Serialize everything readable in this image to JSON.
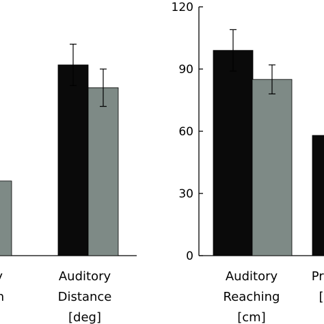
{
  "chart_data": [
    {
      "type": "bar",
      "panel": "left",
      "categories": [
        [
          "ry",
          "on"
        ],
        [
          "Auditory",
          "Distance",
          "[deg]"
        ]
      ],
      "series": [
        {
          "color": "#0a0a0a",
          "values": [
            null,
            92
          ]
        },
        {
          "color": "#7e8a86",
          "values": [
            36,
            81
          ]
        }
      ],
      "errors": [
        [
          null,
          10
        ],
        [
          9,
          9
        ]
      ],
      "ylim": [
        0,
        120
      ],
      "ytick_labels": [],
      "grid": false
    },
    {
      "type": "bar",
      "panel": "right",
      "categories": [
        [
          "Auditory",
          "Reaching",
          "[cm]"
        ],
        [
          "Pro",
          "["
        ]
      ],
      "series": [
        {
          "color": "#0a0a0a",
          "values": [
            99,
            58
          ]
        },
        {
          "color": "#7e8a86",
          "values": [
            85,
            null
          ]
        }
      ],
      "errors": [
        [
          10,
          null
        ],
        [
          7,
          null
        ]
      ],
      "ylim": [
        0,
        120
      ],
      "yticks": [
        0,
        30,
        60,
        90,
        120
      ],
      "ytick_labels": [
        "0",
        "30",
        "60",
        "90",
        "120"
      ],
      "grid": false
    }
  ]
}
